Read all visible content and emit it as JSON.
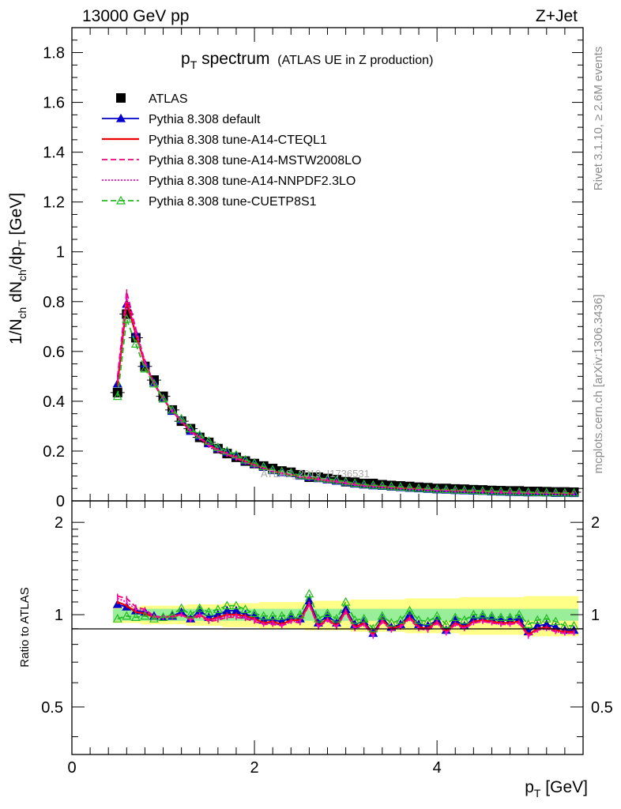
{
  "header": {
    "left": "13000 GeV pp",
    "right": "Z+Jet"
  },
  "title": {
    "main": "p",
    "main_sub": "T",
    "main_rest": " spectrum",
    "sub": "(ATLAS UE in Z production)"
  },
  "side_labels": {
    "rivet": "Rivet 3.1.10, ≥ 2.6M events",
    "mcplots": "mcplots.cern.ch [arXiv:1306.3436]"
  },
  "watermark": "ATLAS_2019_I1736531",
  "axes": {
    "ylabel_top": "1/N_ch dN_ch/dp_T [GeV]",
    "ylabel_bottom": "Ratio to ATLAS",
    "xlabel": "p_T [GeV]"
  },
  "legend": [
    {
      "label": "ATLAS"
    },
    {
      "label": "Pythia 8.308 default"
    },
    {
      "label": "Pythia 8.308 tune-A14-CTEQL1"
    },
    {
      "label": "Pythia 8.308 tune-A14-MSTW2008LO"
    },
    {
      "label": "Pythia 8.308 tune-A14-NNPDF2.3LO"
    },
    {
      "label": "Pythia 8.308 tune-CUETP8S1"
    }
  ],
  "chart_data": [
    {
      "type": "line",
      "panel": "main",
      "title": "p_T spectrum (ATLAS UE in Z production)",
      "xlabel": "p_T [GeV]",
      "ylabel": "1/N_ch dN_ch/dp_T [GeV]",
      "xlim": [
        0,
        5.6
      ],
      "ylim": [
        0,
        1.9
      ],
      "x_ticks": [
        0,
        2,
        4
      ],
      "y_ticks": [
        0.2,
        0.4,
        0.6,
        0.8,
        1,
        1.2,
        1.4,
        1.6,
        1.8
      ],
      "y_tick_labels": [
        "0.2",
        "0.4",
        "0.6",
        "0.8",
        "1",
        "1.2",
        "1.4",
        "1.6",
        "1.8"
      ],
      "y_zero_label": "0",
      "x": [
        0.5,
        0.6,
        0.7,
        0.8,
        0.9,
        1.0,
        1.1,
        1.2,
        1.3,
        1.4,
        1.5,
        1.6,
        1.7,
        1.8,
        1.9,
        2.0,
        2.1,
        2.2,
        2.3,
        2.4,
        2.5,
        2.6,
        2.7,
        2.8,
        2.9,
        3.0,
        3.1,
        3.2,
        3.3,
        3.4,
        3.5,
        3.6,
        3.7,
        3.8,
        3.9,
        4.0,
        4.1,
        4.2,
        4.3,
        4.4,
        4.5,
        4.6,
        4.7,
        4.8,
        4.9,
        5.0,
        5.1,
        5.2,
        5.3,
        5.4,
        5.5
      ],
      "series": [
        {
          "name": "ATLAS",
          "color": "#000000",
          "style": "marker-square",
          "values": [
            0.435,
            0.75,
            0.655,
            0.54,
            0.485,
            0.42,
            0.365,
            0.32,
            0.29,
            0.255,
            0.235,
            0.21,
            0.19,
            0.175,
            0.16,
            0.15,
            0.14,
            0.13,
            0.12,
            0.115,
            0.105,
            0.095,
            0.095,
            0.09,
            0.085,
            0.077,
            0.075,
            0.07,
            0.07,
            0.065,
            0.062,
            0.06,
            0.058,
            0.055,
            0.053,
            0.05,
            0.05,
            0.048,
            0.047,
            0.045,
            0.044,
            0.042,
            0.041,
            0.04,
            0.04,
            0.038,
            0.038,
            0.037,
            0.036,
            0.036,
            0.035
          ]
        },
        {
          "name": "Pythia 8.308 default",
          "color": "#0000cc",
          "style": "solid-triangle",
          "values": [
            0.47,
            0.79,
            0.67,
            0.55,
            0.475,
            0.41,
            0.36,
            0.325,
            0.28,
            0.26,
            0.23,
            0.21,
            0.195,
            0.18,
            0.16,
            0.148,
            0.135,
            0.122,
            0.114,
            0.11,
            0.1,
            0.095,
            0.09,
            0.085,
            0.08,
            0.074,
            0.068,
            0.064,
            0.061,
            0.059,
            0.056,
            0.054,
            0.051,
            0.049,
            0.047,
            0.045,
            0.044,
            0.042,
            0.041,
            0.04,
            0.039,
            0.037,
            0.036,
            0.035,
            0.034,
            0.033,
            0.033,
            0.032,
            0.031,
            0.031,
            0.03
          ]
        },
        {
          "name": "Pythia 8.308 tune-A14-CTEQL1",
          "color": "#ee0000",
          "style": "solid",
          "values": [
            0.47,
            0.8,
            0.67,
            0.55,
            0.47,
            0.41,
            0.36,
            0.32,
            0.28,
            0.255,
            0.225,
            0.205,
            0.19,
            0.175,
            0.158,
            0.145,
            0.132,
            0.12,
            0.112,
            0.107,
            0.097,
            0.092,
            0.087,
            0.082,
            0.078,
            0.072,
            0.066,
            0.062,
            0.06,
            0.057,
            0.054,
            0.052,
            0.05,
            0.048,
            0.046,
            0.044,
            0.043,
            0.041,
            0.04,
            0.039,
            0.038,
            0.036,
            0.035,
            0.034,
            0.033,
            0.032,
            0.032,
            0.031,
            0.03,
            0.03,
            0.029
          ]
        },
        {
          "name": "Pythia 8.308 tune-A14-MSTW2008LO",
          "color": "#ee0077",
          "style": "dashed",
          "values": [
            0.5,
            0.84,
            0.69,
            0.56,
            0.475,
            0.41,
            0.36,
            0.32,
            0.278,
            0.252,
            0.222,
            0.2,
            0.186,
            0.17,
            0.155,
            0.142,
            0.13,
            0.118,
            0.11,
            0.105,
            0.095,
            0.09,
            0.085,
            0.08,
            0.076,
            0.07,
            0.065,
            0.061,
            0.059,
            0.056,
            0.053,
            0.051,
            0.049,
            0.047,
            0.045,
            0.043,
            0.042,
            0.04,
            0.039,
            0.038,
            0.037,
            0.035,
            0.034,
            0.033,
            0.032,
            0.032,
            0.031,
            0.03,
            0.03,
            0.029,
            0.029
          ]
        },
        {
          "name": "Pythia 8.308 tune-A14-NNPDF2.3LO",
          "color": "#ff00cc",
          "style": "dotted",
          "values": [
            0.49,
            0.82,
            0.68,
            0.555,
            0.47,
            0.41,
            0.36,
            0.32,
            0.279,
            0.253,
            0.223,
            0.202,
            0.187,
            0.172,
            0.156,
            0.143,
            0.131,
            0.119,
            0.111,
            0.106,
            0.096,
            0.091,
            0.086,
            0.081,
            0.077,
            0.071,
            0.065,
            0.061,
            0.059,
            0.056,
            0.053,
            0.051,
            0.049,
            0.047,
            0.045,
            0.043,
            0.042,
            0.04,
            0.039,
            0.038,
            0.037,
            0.035,
            0.034,
            0.033,
            0.032,
            0.032,
            0.031,
            0.03,
            0.03,
            0.029,
            0.029
          ]
        },
        {
          "name": "Pythia 8.308 tune-CUETP8S1",
          "color": "#22bb22",
          "style": "dashed-open-triangle",
          "values": [
            0.42,
            0.73,
            0.63,
            0.53,
            0.47,
            0.41,
            0.365,
            0.33,
            0.29,
            0.265,
            0.24,
            0.215,
            0.2,
            0.185,
            0.165,
            0.152,
            0.138,
            0.125,
            0.118,
            0.113,
            0.102,
            0.1,
            0.092,
            0.088,
            0.083,
            0.077,
            0.071,
            0.066,
            0.063,
            0.061,
            0.058,
            0.056,
            0.053,
            0.051,
            0.049,
            0.047,
            0.046,
            0.044,
            0.043,
            0.042,
            0.04,
            0.039,
            0.038,
            0.037,
            0.036,
            0.035,
            0.034,
            0.033,
            0.033,
            0.032,
            0.032
          ]
        }
      ]
    },
    {
      "type": "line",
      "panel": "ratio",
      "ylabel": "Ratio to ATLAS",
      "xlabel": "p_T [GeV]",
      "xlim": [
        0,
        5.6
      ],
      "ylim": [
        0.35,
        2.35
      ],
      "y_scale": "log",
      "x_ticks": [
        0,
        2,
        4
      ],
      "x_tick_labels": [
        "0",
        "2",
        "4"
      ],
      "y_ticks": [
        0.5,
        1,
        2
      ],
      "y_tick_labels": [
        "0.5",
        "1",
        "2"
      ],
      "bands": {
        "stat_color": "#99ee99",
        "syst_color": "#ffff88",
        "stat_half_width": 0.045,
        "syst_half_width": [
          0.06,
          0.06,
          0.06,
          0.07,
          0.07,
          0.07,
          0.07,
          0.07,
          0.08,
          0.08,
          0.08,
          0.08,
          0.09,
          0.09,
          0.09,
          0.09,
          0.1,
          0.1,
          0.1,
          0.1,
          0.1,
          0.11,
          0.11,
          0.11,
          0.11,
          0.11,
          0.12,
          0.12,
          0.12,
          0.12,
          0.12,
          0.12,
          0.13,
          0.13,
          0.13,
          0.13,
          0.13,
          0.13,
          0.14,
          0.14,
          0.14,
          0.14,
          0.14,
          0.14,
          0.14,
          0.15,
          0.15,
          0.15,
          0.15,
          0.15,
          0.15
        ]
      },
      "x": [
        0.5,
        0.6,
        0.7,
        0.8,
        0.9,
        1.0,
        1.1,
        1.2,
        1.3,
        1.4,
        1.5,
        1.6,
        1.7,
        1.8,
        1.9,
        2.0,
        2.1,
        2.2,
        2.3,
        2.4,
        2.5,
        2.6,
        2.7,
        2.8,
        2.9,
        3.0,
        3.1,
        3.2,
        3.3,
        3.4,
        3.5,
        3.6,
        3.7,
        3.8,
        3.9,
        4.0,
        4.1,
        4.2,
        4.3,
        4.4,
        4.5,
        4.6,
        4.7,
        4.8,
        4.9,
        5.0,
        5.1,
        5.2,
        5.3,
        5.4,
        5.5
      ],
      "series": [
        {
          "name": "Pythia 8.308 default",
          "color": "#0000cc",
          "style": "solid-triangle",
          "values": [
            1.08,
            1.06,
            1.03,
            1.02,
            0.99,
            0.98,
            0.99,
            1.02,
            0.97,
            1.03,
            0.98,
            1.0,
            1.03,
            1.03,
            1.0,
            0.99,
            0.96,
            0.96,
            0.95,
            0.98,
            0.97,
            1.11,
            0.94,
            0.99,
            0.94,
            1.04,
            0.93,
            0.95,
            0.87,
            0.97,
            0.91,
            0.93,
            1.0,
            0.93,
            0.92,
            0.96,
            0.89,
            0.96,
            0.92,
            0.97,
            0.98,
            0.97,
            0.96,
            0.96,
            0.97,
            0.88,
            0.92,
            0.93,
            0.91,
            0.89,
            0.89
          ]
        },
        {
          "name": "Pythia 8.308 tune-A14-CTEQL1",
          "color": "#ee0000",
          "style": "solid",
          "values": [
            1.1,
            1.07,
            1.02,
            1.01,
            0.98,
            0.98,
            0.99,
            1.0,
            0.97,
            1.0,
            0.96,
            0.98,
            1.0,
            1.0,
            0.99,
            0.97,
            0.94,
            0.95,
            0.93,
            0.96,
            0.96,
            1.09,
            0.92,
            0.97,
            0.92,
            1.03,
            0.91,
            0.94,
            0.86,
            0.96,
            0.9,
            0.92,
            0.98,
            0.91,
            0.9,
            0.95,
            0.88,
            0.94,
            0.91,
            0.95,
            0.96,
            0.95,
            0.94,
            0.94,
            0.95,
            0.86,
            0.9,
            0.91,
            0.89,
            0.88,
            0.88
          ]
        },
        {
          "name": "Pythia 8.308 tune-A14-MSTW2008LO",
          "color": "#ee0077",
          "style": "dashed",
          "values": [
            1.15,
            1.13,
            1.06,
            1.04,
            0.99,
            0.98,
            0.98,
            1.0,
            0.96,
            0.99,
            0.95,
            0.96,
            0.98,
            0.98,
            0.97,
            0.95,
            0.93,
            0.93,
            0.92,
            0.95,
            0.94,
            1.08,
            0.91,
            0.96,
            0.91,
            1.02,
            0.9,
            0.93,
            0.85,
            0.95,
            0.89,
            0.91,
            0.97,
            0.9,
            0.89,
            0.94,
            0.87,
            0.93,
            0.9,
            0.94,
            0.95,
            0.94,
            0.93,
            0.93,
            0.94,
            0.85,
            0.89,
            0.9,
            0.88,
            0.87,
            0.87
          ]
        },
        {
          "name": "Pythia 8.308 tune-A14-NNPDF2.3LO",
          "color": "#ff00cc",
          "style": "dotted",
          "values": [
            1.13,
            1.1,
            1.04,
            1.03,
            0.98,
            0.98,
            0.99,
            1.0,
            0.96,
            1.0,
            0.96,
            0.97,
            0.99,
            0.99,
            0.98,
            0.96,
            0.93,
            0.94,
            0.92,
            0.95,
            0.95,
            1.08,
            0.91,
            0.96,
            0.91,
            1.02,
            0.9,
            0.93,
            0.85,
            0.95,
            0.89,
            0.91,
            0.97,
            0.9,
            0.89,
            0.94,
            0.87,
            0.93,
            0.9,
            0.94,
            0.95,
            0.94,
            0.93,
            0.93,
            0.94,
            0.85,
            0.89,
            0.9,
            0.88,
            0.87,
            0.87
          ]
        },
        {
          "name": "Pythia 8.308 tune-CUETP8S1",
          "color": "#22bb22",
          "style": "dashed-open-triangle",
          "values": [
            0.97,
            0.99,
            0.98,
            0.99,
            0.97,
            0.98,
            1.0,
            1.05,
            1.0,
            1.05,
            1.02,
            1.04,
            1.07,
            1.07,
            1.04,
            1.01,
            0.99,
            0.99,
            0.99,
            1.0,
            1.0,
            1.17,
            0.97,
            1.01,
            0.97,
            1.1,
            0.96,
            0.97,
            0.9,
            0.99,
            0.94,
            0.96,
            1.03,
            0.96,
            0.95,
            0.99,
            0.93,
            0.98,
            0.96,
            1.0,
            1.0,
            0.99,
            0.98,
            0.98,
            1.0,
            0.93,
            0.96,
            0.97,
            0.95,
            0.92,
            0.92
          ]
        }
      ]
    }
  ]
}
